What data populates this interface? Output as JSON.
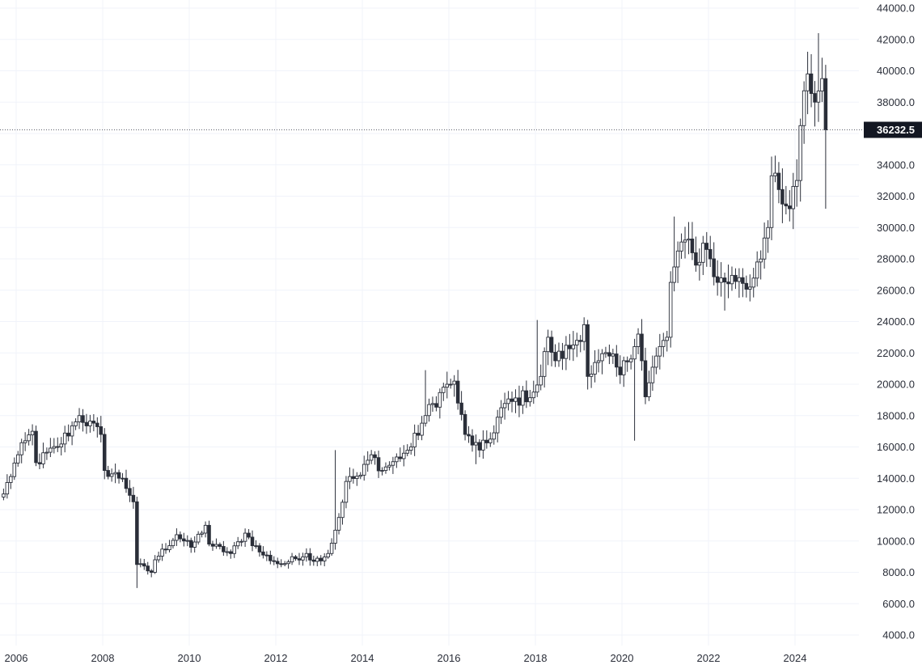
{
  "chart_data": {
    "type": "candlestick",
    "interval": "monthly",
    "x_tick_labels": [
      "2006",
      "2008",
      "2010",
      "2012",
      "2014",
      "2016",
      "2018",
      "2020",
      "2022",
      "2024"
    ],
    "y_tick_labels": [
      "4000.0",
      "6000.0",
      "8000.0",
      "10000.0",
      "12000.0",
      "14000.0",
      "16000.0",
      "18000.0",
      "20000.0",
      "22000.0",
      "24000.0",
      "26000.0",
      "28000.0",
      "30000.0",
      "32000.0",
      "34000.0",
      "38000.0",
      "40000.0",
      "42000.0",
      "44000.0"
    ],
    "ylim": [
      4000,
      44000
    ],
    "x_range": [
      "2005-09",
      "2025-05"
    ],
    "grid": true,
    "current_price": {
      "value": 36232.5,
      "label": "36232.5"
    },
    "colors": {
      "grid": "#f0f3fa",
      "candle": "#2a2e39",
      "badge_bg": "#131722",
      "price_line": "#5d606b",
      "text": "#2a2e39"
    },
    "anchors": [
      [
        "2005-09",
        13000
      ],
      [
        "2006-01",
        15500
      ],
      [
        "2006-05",
        17000
      ],
      [
        "2006-06",
        15000
      ],
      [
        "2006-12",
        16000
      ],
      [
        "2007-05",
        17600
      ],
      [
        "2007-06",
        18000
      ],
      [
        "2007-12",
        16800
      ],
      [
        "2008-01",
        14500
      ],
      [
        "2008-06",
        14000
      ],
      [
        "2008-09",
        12500
      ],
      [
        "2008-10",
        8500
      ],
      [
        "2009-02",
        8000
      ],
      [
        "2009-03",
        8800
      ],
      [
        "2009-09",
        10400
      ],
      [
        "2010-01",
        9600
      ],
      [
        "2010-05",
        11000
      ],
      [
        "2010-06",
        9800
      ],
      [
        "2010-12",
        9200
      ],
      [
        "2011-04",
        10500
      ],
      [
        "2011-08",
        9300
      ],
      [
        "2011-12",
        8700
      ],
      [
        "2012-02",
        8500
      ],
      [
        "2012-09",
        9200
      ],
      [
        "2012-11",
        8700
      ],
      [
        "2013-03",
        9200
      ],
      [
        "2013-06",
        11500
      ],
      [
        "2013-08",
        13800
      ],
      [
        "2013-12",
        14200
      ],
      [
        "2014-03",
        15500
      ],
      [
        "2014-06",
        14500
      ],
      [
        "2014-12",
        15600
      ],
      [
        "2015-02",
        16000
      ],
      [
        "2015-06",
        18000
      ],
      [
        "2015-12",
        20000
      ],
      [
        "2016-02",
        20200
      ],
      [
        "2016-03",
        18800
      ],
      [
        "2016-05",
        16800
      ],
      [
        "2016-09",
        15800
      ],
      [
        "2016-12",
        16500
      ],
      [
        "2017-03",
        18500
      ],
      [
        "2017-12",
        19500
      ],
      [
        "2018-02",
        20500
      ],
      [
        "2018-04",
        23000
      ],
      [
        "2018-06",
        21500
      ],
      [
        "2018-12",
        22800
      ],
      [
        "2019-02",
        23800
      ],
      [
        "2019-03",
        20500
      ],
      [
        "2019-06",
        21500
      ],
      [
        "2019-09",
        21800
      ],
      [
        "2019-12",
        20600
      ],
      [
        "2020-05",
        23200
      ],
      [
        "2020-06",
        21500
      ],
      [
        "2020-07",
        19200
      ],
      [
        "2020-10",
        21800
      ],
      [
        "2021-01",
        23000
      ],
      [
        "2021-02",
        26500
      ],
      [
        "2021-04",
        28500
      ],
      [
        "2021-06",
        29200
      ],
      [
        "2021-09",
        27600
      ],
      [
        "2021-11",
        29000
      ],
      [
        "2022-01",
        28000
      ],
      [
        "2022-03",
        26500
      ],
      [
        "2022-09",
        26800
      ],
      [
        "2022-12",
        26200
      ],
      [
        "2023-02",
        27800
      ],
      [
        "2023-05",
        30000
      ],
      [
        "2023-06",
        33300
      ],
      [
        "2023-09",
        31500
      ],
      [
        "2023-11",
        31200
      ],
      [
        "2024-01",
        33000
      ],
      [
        "2024-02",
        36500
      ],
      [
        "2024-04",
        39800
      ],
      [
        "2024-06",
        38000
      ],
      [
        "2024-08",
        39500
      ],
      [
        "2024-09",
        36232.5
      ]
    ],
    "extremes": [
      [
        "2007-07",
        "high",
        18200
      ],
      [
        "2008-10",
        "low",
        7000
      ],
      [
        "2012-01",
        "low",
        8300
      ],
      [
        "2013-05",
        "high",
        15800
      ],
      [
        "2015-06",
        "high",
        20900
      ],
      [
        "2016-08",
        "low",
        14900
      ],
      [
        "2018-01",
        "high",
        24100
      ],
      [
        "2020-04",
        "low",
        16400
      ],
      [
        "2021-03",
        "high",
        30700
      ],
      [
        "2022-05",
        "low",
        24700
      ],
      [
        "2024-07",
        "high",
        42400
      ],
      [
        "2024-09",
        "low",
        31200
      ]
    ]
  }
}
